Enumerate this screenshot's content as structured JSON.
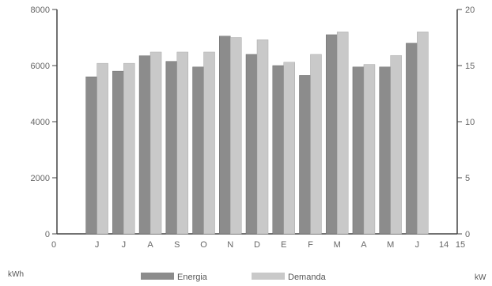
{
  "chart_data": {
    "type": "bar",
    "title": "",
    "categories": [
      "J",
      "J",
      "A",
      "S",
      "O",
      "N",
      "D",
      "E",
      "F",
      "M",
      "A",
      "M",
      "J"
    ],
    "series": [
      {
        "name": "Energia",
        "axis": "left",
        "unit": "kWh",
        "values": [
          5600,
          5800,
          6350,
          6150,
          5950,
          7050,
          6400,
          6000,
          5650,
          7100,
          5950,
          5950,
          6800
        ]
      },
      {
        "name": "Demanda",
        "axis": "right",
        "unit": "kW",
        "values": [
          15.2,
          15.2,
          16.2,
          16.2,
          16.2,
          17.5,
          17.3,
          15.3,
          16.0,
          18.0,
          15.1,
          15.9,
          18.0
        ]
      }
    ],
    "y_left": {
      "label": "kWh",
      "ylim": [
        0,
        8000
      ],
      "ticks": [
        "0",
        "2000",
        "4000",
        "6000",
        "8000"
      ]
    },
    "y_right": {
      "label": "kW",
      "ylim": [
        0,
        20
      ],
      "ticks": [
        "0",
        "5",
        "10",
        "15",
        "20"
      ]
    },
    "x_extra_ticks": {
      "start": "0",
      "end": [
        "14",
        "15"
      ]
    },
    "legend": {
      "placement": "bottom",
      "entries": [
        "Energia",
        "Demanda"
      ]
    },
    "grid": false,
    "colors": {
      "Energia": "#8c8c8c",
      "Demanda": "#c9c9c9",
      "axis": "#444444"
    }
  }
}
